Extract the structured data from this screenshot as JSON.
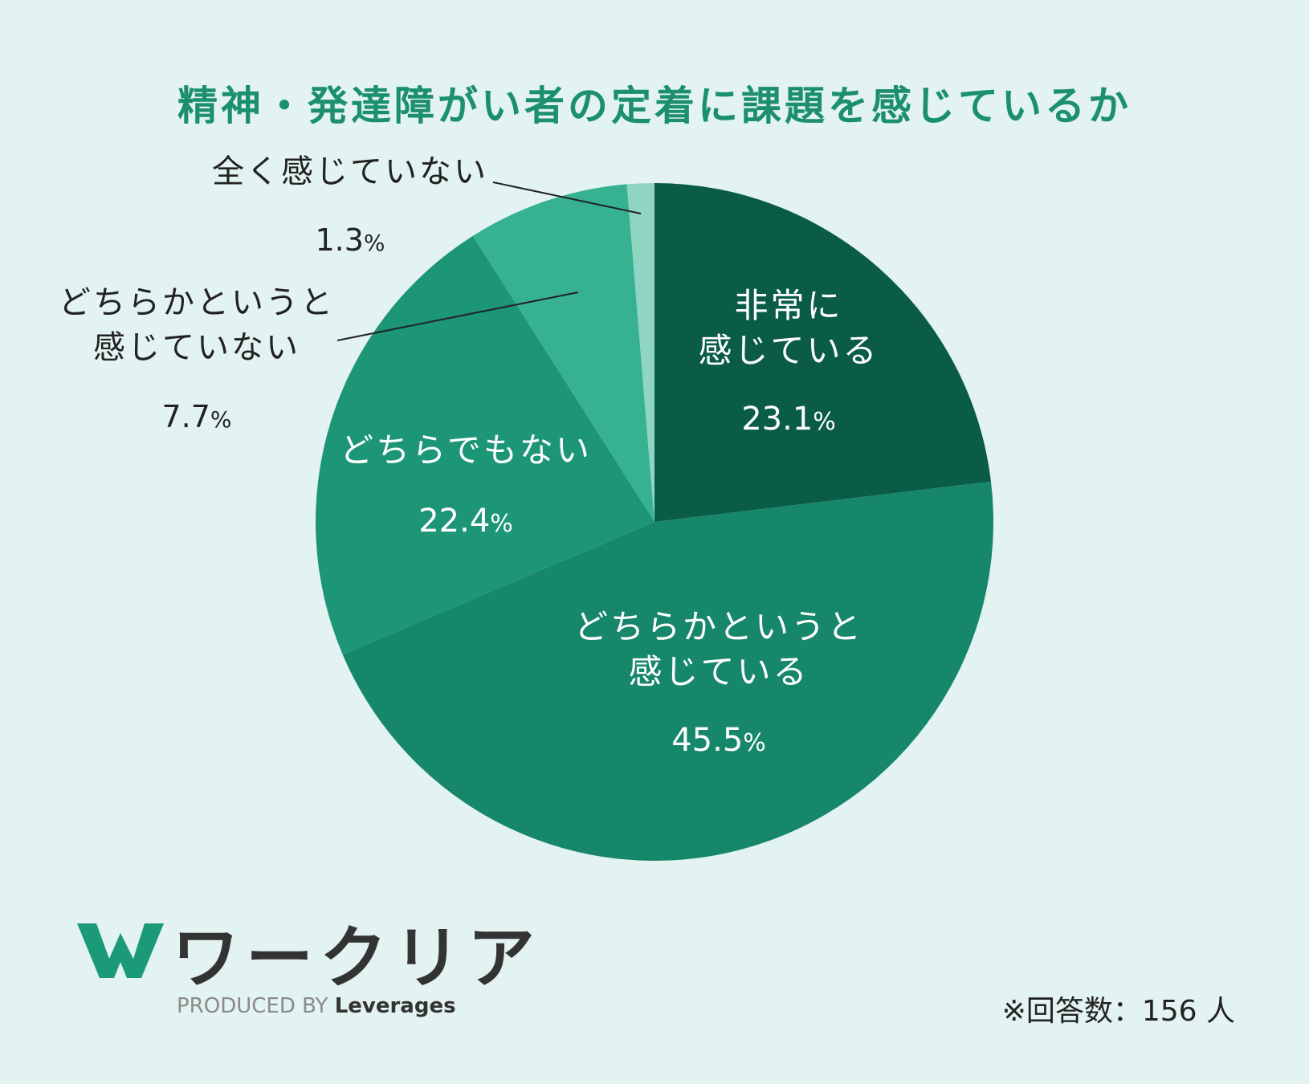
{
  "title": "精神・発達障がい者の定着に課題を感じているか",
  "chart_data": {
    "type": "pie",
    "title": "精神・発達障がい者の定着に課題を感じているか",
    "start": "12 o'clock",
    "direction": "clockwise",
    "slices": [
      {
        "lines": [
          "非常に",
          "感じている"
        ],
        "value": 23.1,
        "pct_label": "23.1",
        "color": "#0a5c46",
        "label_color": "#ffffff",
        "label_inside": true
      },
      {
        "lines": [
          "どちらかというと",
          "感じている"
        ],
        "value": 45.5,
        "pct_label": "45.5",
        "color": "#16876a",
        "label_color": "#ffffff",
        "label_inside": true
      },
      {
        "lines": [
          "どちらでもない"
        ],
        "value": 22.4,
        "pct_label": "22.4",
        "color": "#1c9676",
        "label_color": "#ffffff",
        "label_inside": true
      },
      {
        "lines": [
          "どちらかというと",
          "感じていない"
        ],
        "value": 7.7,
        "pct_label": "7.7",
        "color": "#36b293",
        "label_color": "#222222",
        "label_inside": false
      },
      {
        "lines": [
          "全く感じていない"
        ],
        "value": 1.3,
        "pct_label": "1.3",
        "color": "#8fd5c2",
        "label_color": "#222222",
        "label_inside": false
      }
    ],
    "percent_sign": "%"
  },
  "logo": {
    "name": "ワークリア",
    "produced_by": "PRODUCED BY",
    "brand": "Leverages",
    "mark_color": "#1b9a7a"
  },
  "footnote": "※回答数：156 人"
}
